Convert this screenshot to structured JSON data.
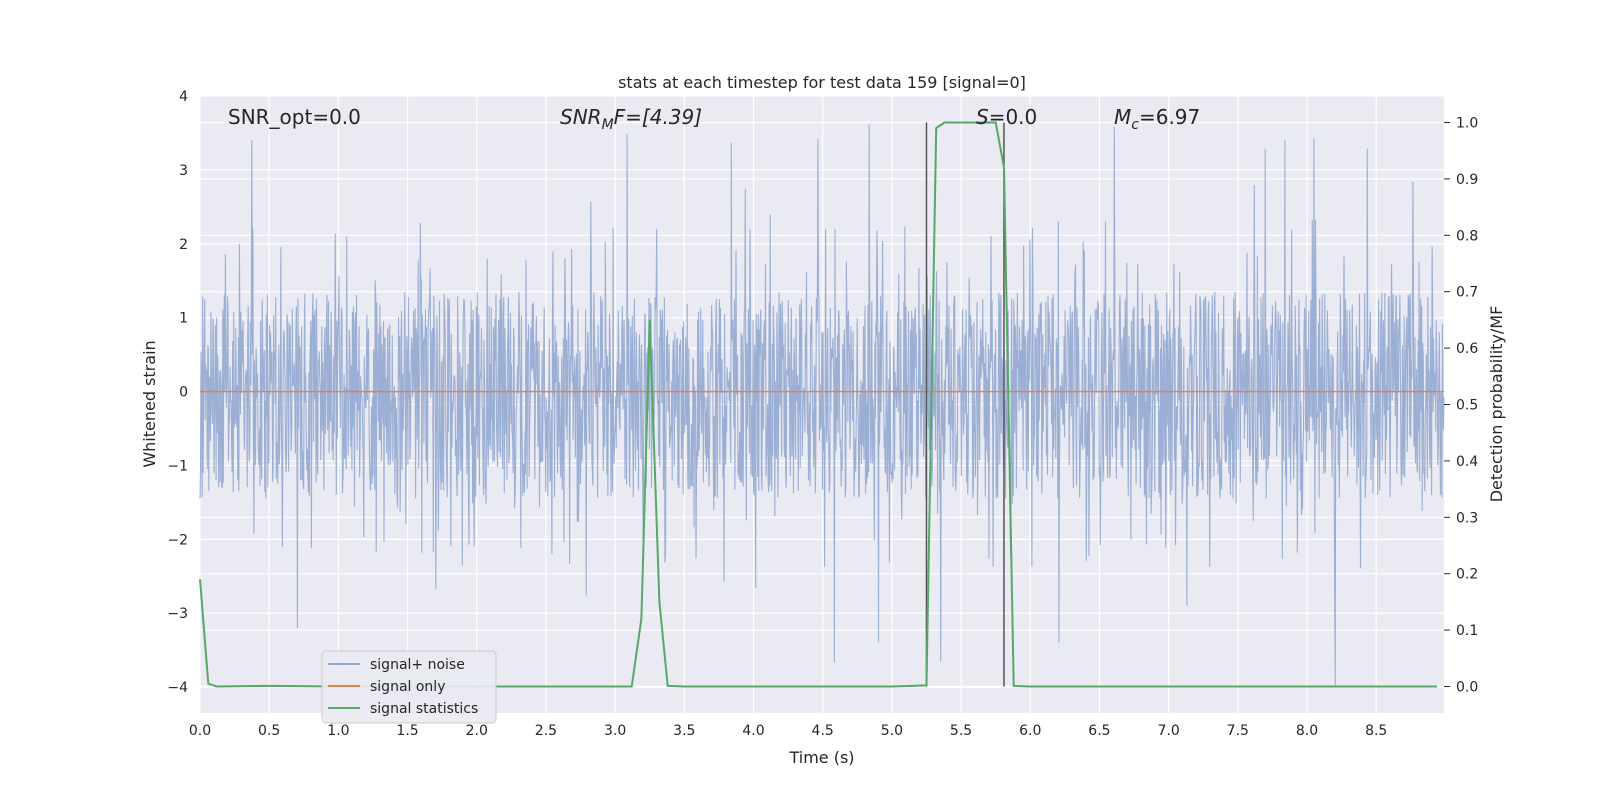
{
  "chart_data": {
    "type": "line",
    "title": "stats at each timestep for test data 159 [signal=0]",
    "xlabel": "Time (s)",
    "ylabel": "Whitened strain",
    "y2label": "Detection probability/MF",
    "xlim": [
      0,
      8.99
    ],
    "ylim": [
      -4.35,
      4.0
    ],
    "y2lim": [
      -0.047,
      1.047
    ],
    "x_ticks": [
      "0.0",
      "0.5",
      "1.0",
      "1.5",
      "2.0",
      "2.5",
      "3.0",
      "3.5",
      "4.0",
      "4.5",
      "5.0",
      "5.5",
      "6.0",
      "6.5",
      "7.0",
      "7.5",
      "8.0",
      "8.5"
    ],
    "y_ticks": [
      "4",
      "3",
      "2",
      "1",
      "0",
      "−1",
      "−2",
      "−3",
      "−4"
    ],
    "y2_ticks": [
      "1.0",
      "0.9",
      "0.8",
      "0.7",
      "0.6",
      "0.5",
      "0.4",
      "0.3",
      "0.2",
      "0.1",
      "0.0"
    ],
    "annotations": {
      "snr_opt": "SNR_opt=0.0",
      "snr_mf_main": "SNR",
      "snr_mf_sub": "M",
      "snr_mf_rest": "F=[4.39]",
      "s_main": "S",
      "s_rest": "=0.0",
      "mc_main": "M",
      "mc_sub": "c",
      "mc_rest": "=6.97"
    },
    "vertical_lines_x": [
      5.25,
      5.81
    ],
    "series": [
      {
        "name": "signal+ noise",
        "color": "#92a7cf",
        "note": "whitened strain noise, approx uniform noise between about -1.7 and 1.7 with spikes up to 3.6 and down to -4.0",
        "noise_band": [
          -1.45,
          1.35
        ],
        "spike_range": [
          -4.0,
          3.65
        ]
      },
      {
        "name": "signal only",
        "color": "#dd8452",
        "x": [
          0,
          8.99
        ],
        "y": [
          0,
          0
        ]
      },
      {
        "name": "signal statistics",
        "color": "#55a868",
        "axis": "right",
        "x": [
          0.0,
          0.06,
          0.12,
          0.5,
          1.0,
          2.0,
          3.0,
          3.12,
          3.19,
          3.25,
          3.32,
          3.38,
          3.5,
          4.0,
          5.0,
          5.25,
          5.32,
          5.38,
          5.5,
          5.75,
          5.81,
          5.88,
          6.0,
          7.0,
          8.0,
          8.94
        ],
        "y": [
          0.19,
          0.005,
          0.0,
          0.001,
          0.0,
          0.0,
          0.0,
          0.0,
          0.12,
          0.65,
          0.15,
          0.001,
          0.0,
          0.0,
          0.0,
          0.002,
          0.99,
          1.0,
          1.0,
          1.0,
          0.92,
          0.001,
          0.0,
          0.0,
          0.0,
          0.0
        ]
      }
    ],
    "legend": {
      "position": "lower-left",
      "entries": [
        "signal+ noise",
        "signal only",
        "signal statistics"
      ]
    },
    "grid": true
  }
}
